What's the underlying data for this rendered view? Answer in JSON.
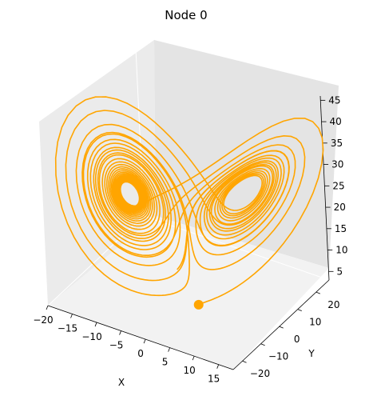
{
  "chart_data": {
    "type": "line",
    "projection": "3d",
    "title": "Node 0",
    "xlabel": "X",
    "ylabel": "Y",
    "zlabel": "",
    "x_ticks": [
      -20,
      -15,
      -10,
      -5,
      0,
      5,
      10,
      15
    ],
    "y_ticks": [
      -20,
      -10,
      0,
      10,
      20
    ],
    "z_ticks": [
      5,
      10,
      15,
      20,
      25,
      30,
      35,
      40,
      45
    ],
    "xlim": [
      -20,
      18
    ],
    "ylim": [
      -25,
      27
    ],
    "zlim": [
      3,
      46
    ],
    "grid": false,
    "pane_colors": {
      "left": "#ebebeb",
      "right": "#e4e4e4",
      "floor": "#f2f2f2"
    },
    "series": [
      {
        "line_color": "#ffa500",
        "attractor": "lorenz",
        "params": {
          "sigma": 10,
          "rho": 28,
          "beta": 2.6667
        },
        "initial_point": [
          1.0,
          1.0,
          1.0
        ],
        "duration": 30
      }
    ],
    "marker": {
      "color": "#ffa500",
      "x": 1,
      "y": 1,
      "z": 1
    }
  }
}
